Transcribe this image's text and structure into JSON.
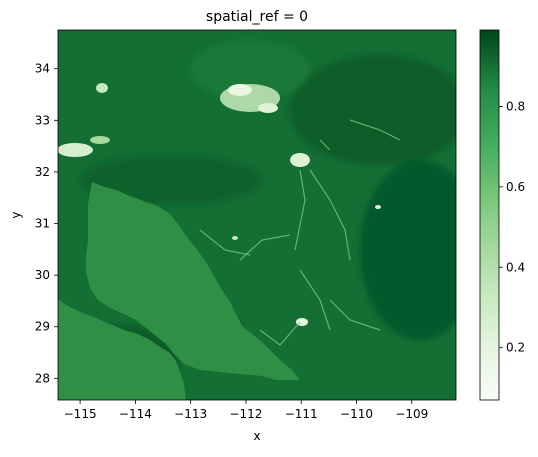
{
  "chart_data": {
    "type": "heatmap",
    "title": "spatial_ref = 0",
    "xlabel": "x",
    "ylabel": "y",
    "xlim": [
      -115.4,
      -108.2
    ],
    "ylim": [
      27.58,
      34.75
    ],
    "xticks": [
      -115,
      -114,
      -113,
      -112,
      -111,
      -110,
      -109
    ],
    "xtick_labels": [
      "−115",
      "−114",
      "−113",
      "−112",
      "−111",
      "−110",
      "−109"
    ],
    "yticks": [
      28,
      29,
      30,
      31,
      32,
      33,
      34
    ],
    "ytick_labels": [
      "28",
      "29",
      "30",
      "31",
      "32",
      "33",
      "34"
    ],
    "colorbar": {
      "colormap": "Greens",
      "range": [
        0.07,
        0.99
      ],
      "ticks": [
        0.2,
        0.4,
        0.6,
        0.8
      ],
      "tick_labels": [
        "0.2",
        "0.4",
        "0.6",
        "0.8"
      ]
    },
    "grid": false,
    "colors": {
      "background_high": "#0b6a30",
      "water_value_color": "#2f8f46",
      "urban_low": "#dff2d7"
    }
  }
}
